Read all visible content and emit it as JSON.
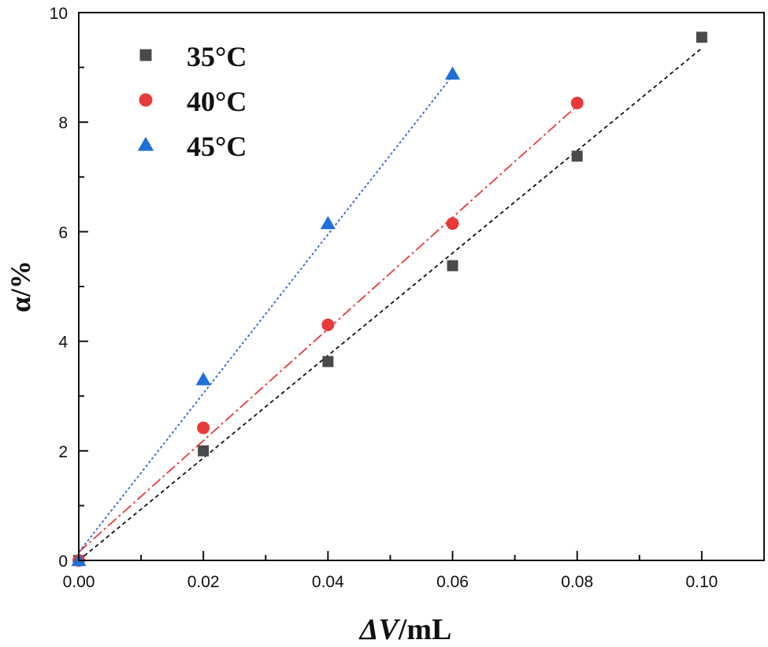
{
  "chart_data": {
    "type": "scatter",
    "xlabel_italic": "ΔV",
    "xlabel_rest": "/mL",
    "ylabel": "α/%",
    "xlim": [
      0,
      0.11
    ],
    "ylim": [
      0,
      10
    ],
    "x_ticks": [
      0.0,
      0.02,
      0.04,
      0.06,
      0.08,
      0.1
    ],
    "x_tick_labels": [
      "0.00",
      "0.02",
      "0.04",
      "0.06",
      "0.08",
      "0.10"
    ],
    "y_ticks": [
      0,
      2,
      4,
      6,
      8,
      10
    ],
    "y_tick_labels": [
      "0",
      "2",
      "4",
      "6",
      "8",
      "10"
    ],
    "legend_position": "top-left",
    "grid": false,
    "series": [
      {
        "name": "35°C",
        "marker": "square",
        "color": "#4a4a4a",
        "line_color": "#111111",
        "x": [
          0.0,
          0.02,
          0.04,
          0.06,
          0.08,
          0.1
        ],
        "y": [
          0.0,
          2.0,
          3.63,
          5.38,
          7.38,
          9.55
        ],
        "fit": [
          [
            0.0,
            0.0
          ],
          [
            0.1,
            9.35
          ]
        ]
      },
      {
        "name": "40°C",
        "marker": "circle",
        "color": "#e83a3a",
        "line_color": "#e83a3a",
        "x": [
          0.0,
          0.02,
          0.04,
          0.06,
          0.08
        ],
        "y": [
          0.0,
          2.42,
          4.3,
          6.15,
          8.35
        ],
        "fit": [
          [
            0.0,
            0.15
          ],
          [
            0.08,
            8.3
          ]
        ]
      },
      {
        "name": "45°C",
        "marker": "triangle",
        "color": "#1f6fd6",
        "line_color": "#2f5fe0",
        "x": [
          0.0,
          0.02,
          0.04,
          0.06
        ],
        "y": [
          0.0,
          3.3,
          6.15,
          8.88
        ],
        "fit": [
          [
            0.0,
            0.15
          ],
          [
            0.06,
            8.85
          ]
        ]
      }
    ]
  }
}
